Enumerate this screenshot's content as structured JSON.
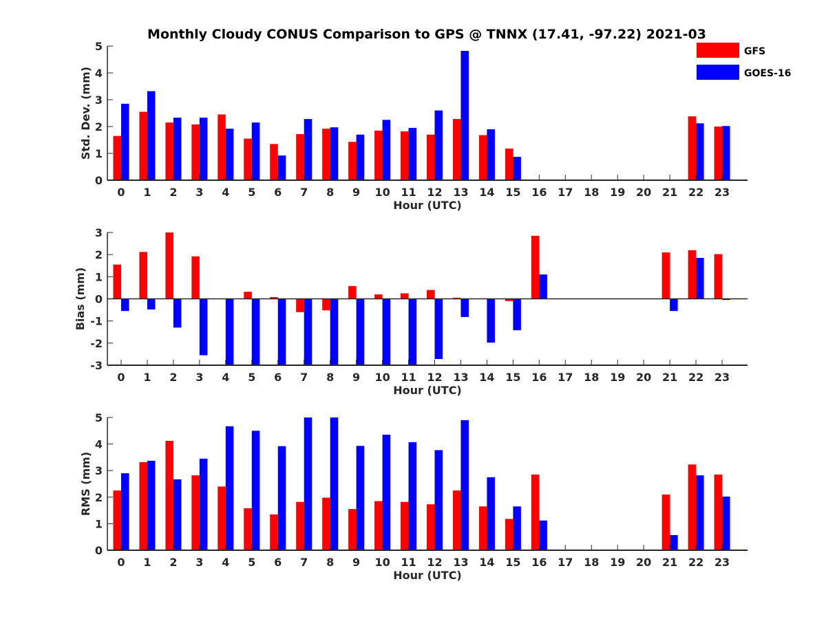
{
  "title": "Monthly Cloudy CONUS Comparison to GPS @ TNNX (17.41, -97.22) 2021-03",
  "legend": {
    "placement": "top-right",
    "items": [
      {
        "name": "GFS",
        "color": "#ff0000"
      },
      {
        "name": "GOES-16",
        "color": "#0000ff"
      }
    ]
  },
  "chart_data": [
    {
      "type": "bar",
      "ylabel": "Std. Dev. (mm)",
      "xlabel": "Hour (UTC)",
      "ylim": [
        0,
        5
      ],
      "yticks": [
        "0",
        "1",
        "2",
        "3",
        "4",
        "5"
      ],
      "categories": [
        "0",
        "1",
        "2",
        "3",
        "4",
        "5",
        "6",
        "7",
        "8",
        "9",
        "10",
        "11",
        "12",
        "13",
        "14",
        "15",
        "16",
        "17",
        "18",
        "19",
        "20",
        "21",
        "22",
        "23"
      ],
      "series": [
        {
          "name": "GFS",
          "color": "#ff0000",
          "values": [
            1.65,
            2.55,
            2.15,
            2.08,
            2.45,
            1.55,
            1.35,
            1.72,
            1.92,
            1.43,
            1.85,
            1.82,
            1.7,
            2.28,
            1.68,
            1.18,
            null,
            null,
            null,
            null,
            null,
            null,
            2.38,
            2.0
          ]
        },
        {
          "name": "GOES-16",
          "color": "#0000ff",
          "values": [
            2.85,
            3.32,
            2.33,
            2.33,
            1.92,
            2.15,
            0.92,
            2.28,
            1.97,
            1.7,
            2.25,
            1.95,
            2.6,
            4.82,
            1.9,
            0.87,
            null,
            null,
            null,
            null,
            null,
            null,
            2.12,
            2.02
          ]
        }
      ]
    },
    {
      "type": "bar",
      "ylabel": "Bias (mm)",
      "xlabel": "Hour (UTC)",
      "ylim": [
        -3,
        3
      ],
      "yticks": [
        "-3",
        "-2",
        "-1",
        "0",
        "1",
        "2",
        "3"
      ],
      "categories": [
        "0",
        "1",
        "2",
        "3",
        "4",
        "5",
        "6",
        "7",
        "8",
        "9",
        "10",
        "11",
        "12",
        "13",
        "14",
        "15",
        "16",
        "17",
        "18",
        "19",
        "20",
        "21",
        "22",
        "23"
      ],
      "series": [
        {
          "name": "GFS",
          "color": "#ff0000",
          "values": [
            1.55,
            2.12,
            3.0,
            1.92,
            0.0,
            0.32,
            0.08,
            -0.6,
            -0.52,
            0.58,
            0.2,
            0.25,
            0.4,
            0.05,
            0.02,
            -0.1,
            2.85,
            null,
            null,
            null,
            null,
            2.1,
            2.2,
            2.02
          ]
        },
        {
          "name": "GOES-16",
          "color": "#0000ff",
          "values": [
            -0.55,
            -0.48,
            -1.3,
            -2.55,
            -3.0,
            -3.0,
            -3.0,
            -3.0,
            -3.0,
            -3.0,
            -3.0,
            -3.0,
            -2.72,
            -0.82,
            -1.98,
            -1.42,
            1.1,
            null,
            null,
            null,
            null,
            -0.55,
            1.85,
            -0.05
          ]
        }
      ]
    },
    {
      "type": "bar",
      "ylabel": "RMS (mm)",
      "xlabel": "Hour (UTC)",
      "ylim": [
        0,
        5
      ],
      "yticks": [
        "0",
        "1",
        "2",
        "3",
        "4",
        "5"
      ],
      "categories": [
        "0",
        "1",
        "2",
        "3",
        "4",
        "5",
        "6",
        "7",
        "8",
        "9",
        "10",
        "11",
        "12",
        "13",
        "14",
        "15",
        "16",
        "17",
        "18",
        "19",
        "20",
        "21",
        "22",
        "23"
      ],
      "series": [
        {
          "name": "GFS",
          "color": "#ff0000",
          "values": [
            2.25,
            3.32,
            4.12,
            2.82,
            2.4,
            1.58,
            1.35,
            1.82,
            1.98,
            1.55,
            1.85,
            1.82,
            1.73,
            2.25,
            1.65,
            1.18,
            2.85,
            null,
            null,
            null,
            null,
            2.1,
            3.23,
            2.85
          ]
        },
        {
          "name": "GOES-16",
          "color": "#0000ff",
          "values": [
            2.9,
            3.37,
            2.67,
            3.45,
            4.67,
            4.5,
            3.92,
            5.0,
            5.0,
            3.93,
            4.35,
            4.07,
            3.77,
            4.9,
            2.75,
            1.65,
            1.12,
            null,
            null,
            null,
            null,
            0.57,
            2.82,
            2.02
          ]
        }
      ]
    }
  ]
}
